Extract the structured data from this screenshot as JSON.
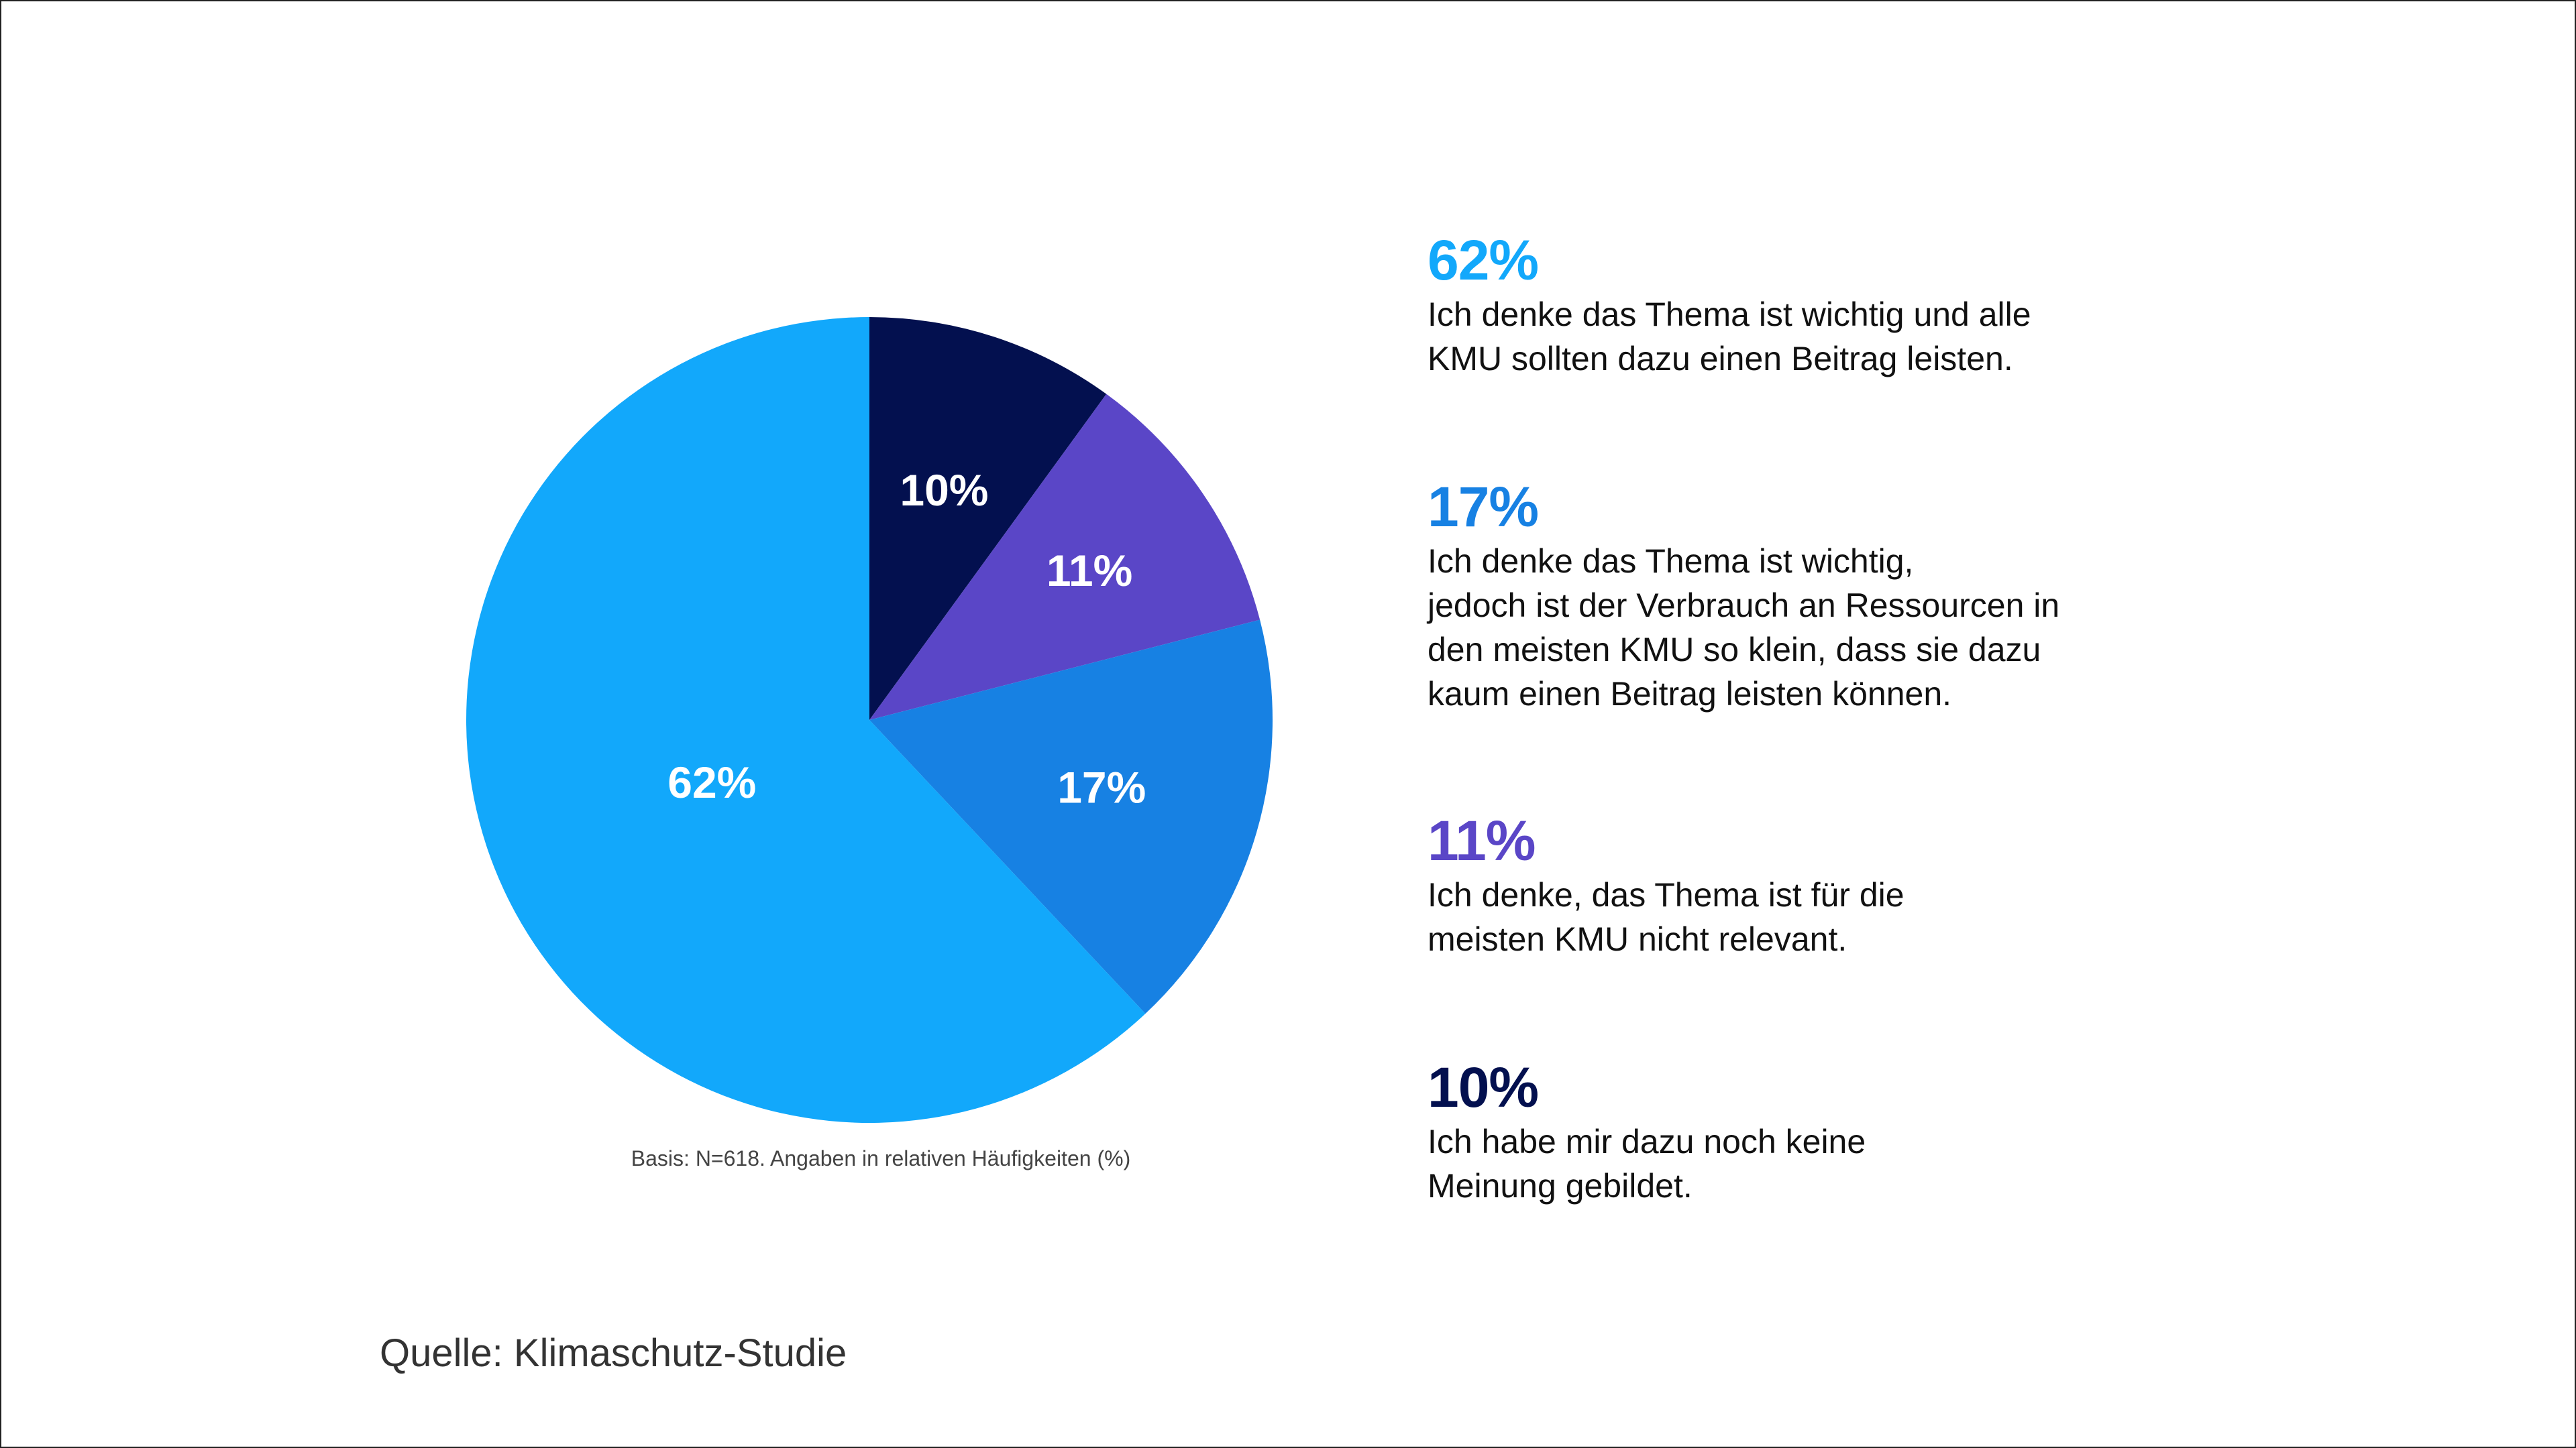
{
  "chart_data": {
    "type": "pie",
    "title": "",
    "start": "top-clockwise",
    "slices": [
      {
        "label": "Ich habe mir dazu noch keine Meinung gebildet.",
        "value": 10,
        "display": "10%",
        "color": "#03104f"
      },
      {
        "label": "Ich denke, das Thema ist für die meisten KMU nicht relevant.",
        "value": 11,
        "display": "11%",
        "color": "#5a46c7"
      },
      {
        "label": "Ich denke das Thema ist wichtig, jedoch ist der Verbrauch an Ressourcen in den meisten KMU so klein, dass sie dazu kaum einen Beitrag leisten können.",
        "value": 17,
        "display": "17%",
        "color": "#1781e3"
      },
      {
        "label": "Ich denke das Thema ist wichtig und alle KMU sollten dazu einen Beitrag leisten.",
        "value": 62,
        "display": "62%",
        "color": "#12a8fb"
      }
    ],
    "legend_placement": "right"
  },
  "legend": [
    {
      "pct": "62%",
      "color": "#12a8fb",
      "text": "Ich denke das Thema ist wichtig und alle\nKMU sollten dazu einen Beitrag leisten."
    },
    {
      "pct": "17%",
      "color": "#1781e3",
      "text": "Ich denke das Thema ist wichtig,\njedoch ist der Verbrauch an Ressourcen in\nden meisten KMU so klein, dass sie dazu\nkaum einen Beitrag leisten können."
    },
    {
      "pct": "11%",
      "color": "#5a46c7",
      "text": "Ich denke, das Thema ist für die\nmeisten KMU nicht relevant."
    },
    {
      "pct": "10%",
      "color": "#03104f",
      "text": "Ich habe mir dazu noch keine\nMeinung gebildet."
    }
  ],
  "basis_note": "Basis: N=618. Angaben in relativen Häufigkeiten (%)",
  "source": "Quelle: Klimaschutz-Studie"
}
